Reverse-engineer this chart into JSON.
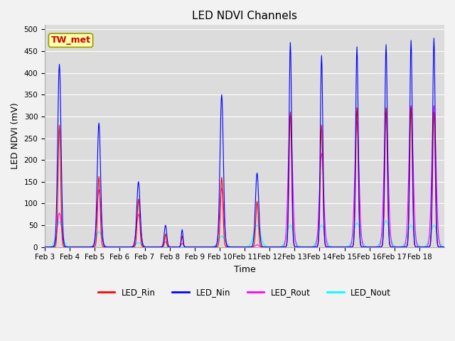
{
  "title": "LED NDVI Channels",
  "xlabel": "Time",
  "ylabel": "LED NDVI (mV)",
  "annotation": "TW_met",
  "ylim": [
    0,
    510
  ],
  "legend_labels": [
    "LED_Rin",
    "LED_Nin",
    "LED_Rout",
    "LED_Nout"
  ],
  "legend_colors": [
    "#ff0000",
    "#0000ff",
    "#ff00ff",
    "#00ffff"
  ],
  "background_color": "#dcdcdc",
  "grid_color": "#ffffff",
  "tick_labels": [
    "Feb 3",
    "Feb 4",
    "Feb 5",
    "Feb 6",
    "Feb 7",
    "Feb 8",
    "Feb 9",
    "Feb 10",
    "Feb 11",
    "Feb 12",
    "Feb 13",
    "Feb 14",
    "Feb 15",
    "Feb 16",
    "Feb 17",
    "Feb 18"
  ],
  "peak_data": [
    [
      35,
      420,
      280,
      78,
      58,
      4,
      3,
      5,
      7
    ],
    [
      130,
      285,
      162,
      132,
      35,
      4,
      3,
      5,
      7
    ],
    [
      225,
      150,
      110,
      75,
      10,
      4,
      3,
      5,
      7
    ],
    [
      290,
      50,
      30,
      12,
      0,
      3,
      2,
      4,
      5
    ],
    [
      330,
      40,
      25,
      8,
      0,
      2,
      2,
      3,
      4
    ],
    [
      425,
      350,
      160,
      135,
      25,
      4,
      3,
      5,
      8
    ],
    [
      510,
      170,
      105,
      5,
      50,
      4,
      3,
      4,
      8
    ],
    [
      590,
      470,
      310,
      305,
      50,
      3,
      3,
      5,
      8
    ],
    [
      665,
      440,
      280,
      215,
      50,
      3,
      3,
      5,
      8
    ],
    [
      750,
      460,
      320,
      290,
      55,
      3,
      3,
      5,
      8
    ],
    [
      820,
      465,
      320,
      305,
      60,
      3,
      3,
      5,
      8
    ],
    [
      880,
      475,
      320,
      325,
      50,
      3,
      3,
      5,
      8
    ],
    [
      935,
      480,
      310,
      325,
      50,
      3,
      3,
      5,
      8
    ]
  ],
  "title_fontsize": 11,
  "axis_fontsize": 9,
  "tick_fontsize": 7.5
}
